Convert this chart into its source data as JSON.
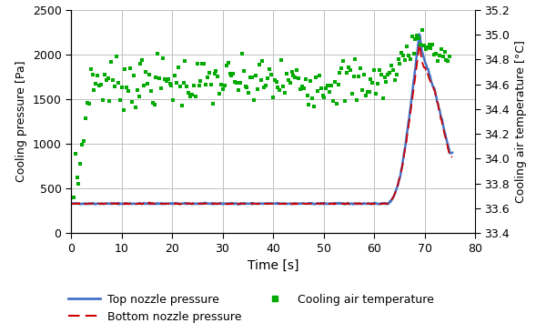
{
  "title": "",
  "xlabel": "Time [s]",
  "ylabel_left": "Cooling pressure [Pa]",
  "ylabel_right": "Cooling air temperature [°C]",
  "xlim": [
    0,
    80
  ],
  "ylim_left": [
    0,
    2500
  ],
  "ylim_right": [
    33.4,
    35.2
  ],
  "xticks": [
    0,
    10,
    20,
    30,
    40,
    50,
    60,
    70,
    80
  ],
  "yticks_left": [
    0,
    500,
    1000,
    1500,
    2000,
    2500
  ],
  "yticks_right": [
    33.4,
    33.6,
    33.8,
    34.0,
    34.2,
    34.4,
    34.6,
    34.8,
    35.0,
    35.2
  ],
  "top_nozzle_color": "#4472C4",
  "bottom_nozzle_color": "#CC0000",
  "temp_color": "#00AA00",
  "legend_labels": [
    "Top nozzle pressure",
    "Bottom nozzle pressure",
    "Cooling air temperature"
  ],
  "background_color": "#FFFFFF",
  "grid_color": "#C0C0C0"
}
